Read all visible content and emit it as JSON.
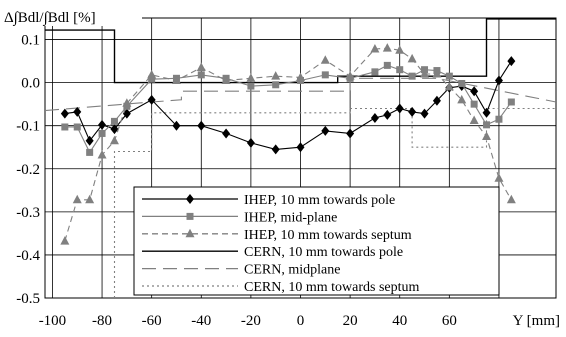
{
  "chart_data": {
    "type": "line",
    "title": "",
    "ylabel": "Δ∫Bdl/∫Bdl [%]",
    "xlabel": "Y [mm]",
    "xlim": [
      -100,
      100
    ],
    "ylim": [
      -0.5,
      0.15
    ],
    "xticks": [
      -100,
      -80,
      -60,
      -40,
      -20,
      0,
      20,
      40,
      60
    ],
    "xtick_labels": [
      "-100",
      "-80",
      "-60",
      "-40",
      "-20",
      "0",
      "20",
      "40",
      "60"
    ],
    "yticks": [
      0.1,
      0.0,
      -0.1,
      -0.2,
      -0.3,
      -0.4,
      -0.5
    ],
    "ytick_labels": [
      "0.1",
      "0.0",
      "-0.1",
      "-0.2",
      "-0.3",
      "-0.4",
      "-0.5"
    ],
    "grid": true,
    "legend_position": "bottom-center",
    "series": [
      {
        "name": "IHEP, 10 mm towards pole",
        "color": "#000000",
        "dash": "",
        "marker": "diamond",
        "points": [
          [
            -95,
            -0.072
          ],
          [
            -90,
            -0.068
          ],
          [
            -85,
            -0.135
          ],
          [
            -80,
            -0.098
          ],
          [
            -75,
            -0.108
          ],
          [
            -70,
            -0.072
          ],
          [
            -60,
            -0.04
          ],
          [
            -50,
            -0.1
          ],
          [
            -40,
            -0.1
          ],
          [
            -30,
            -0.118
          ],
          [
            -20,
            -0.14
          ],
          [
            -10,
            -0.155
          ],
          [
            0,
            -0.15
          ],
          [
            10,
            -0.112
          ],
          [
            20,
            -0.118
          ],
          [
            30,
            -0.082
          ],
          [
            35,
            -0.075
          ],
          [
            40,
            -0.06
          ],
          [
            45,
            -0.068
          ],
          [
            50,
            -0.072
          ],
          [
            55,
            -0.042
          ],
          [
            60,
            -0.012
          ],
          [
            65,
            -0.008
          ],
          [
            70,
            -0.02
          ],
          [
            75,
            -0.07
          ],
          [
            80,
            0.005
          ],
          [
            85,
            0.05
          ]
        ]
      },
      {
        "name": "IHEP, mid-plane",
        "color": "#808080",
        "dash": "",
        "marker": "square",
        "points": [
          [
            -95,
            -0.103
          ],
          [
            -90,
            -0.103
          ],
          [
            -85,
            -0.162
          ],
          [
            -80,
            -0.118
          ],
          [
            -75,
            -0.09
          ],
          [
            -70,
            -0.055
          ],
          [
            -60,
            0.008
          ],
          [
            -50,
            0.01
          ],
          [
            -40,
            0.018
          ],
          [
            -30,
            0.01
          ],
          [
            -20,
            -0.008
          ],
          [
            -10,
            -0.005
          ],
          [
            0,
            0.005
          ],
          [
            10,
            0.018
          ],
          [
            20,
            0.01
          ],
          [
            30,
            0.025
          ],
          [
            35,
            0.04
          ],
          [
            40,
            0.03
          ],
          [
            45,
            0.015
          ],
          [
            50,
            0.03
          ],
          [
            55,
            0.028
          ],
          [
            60,
            0.015
          ],
          [
            65,
            -0.002
          ],
          [
            70,
            -0.05
          ],
          [
            75,
            -0.098
          ],
          [
            80,
            -0.085
          ],
          [
            85,
            -0.045
          ]
        ]
      },
      {
        "name": "IHEP, 10 mm towards septum",
        "color": "#808080",
        "dash": "6,4",
        "marker": "triangle",
        "points": [
          [
            -95,
            -0.368
          ],
          [
            -90,
            -0.272
          ],
          [
            -85,
            -0.272
          ],
          [
            -80,
            -0.168
          ],
          [
            -75,
            -0.135
          ],
          [
            -70,
            -0.048
          ],
          [
            -60,
            0.018
          ],
          [
            -50,
            0.005
          ],
          [
            -40,
            0.035
          ],
          [
            -30,
            0.005
          ],
          [
            -20,
            0.01
          ],
          [
            -10,
            0.015
          ],
          [
            0,
            0.012
          ],
          [
            10,
            0.052
          ],
          [
            20,
            0.015
          ],
          [
            30,
            0.078
          ],
          [
            35,
            0.08
          ],
          [
            40,
            0.075
          ],
          [
            45,
            0.055
          ],
          [
            50,
            0.02
          ],
          [
            55,
            0.02
          ],
          [
            60,
            -0.01
          ],
          [
            65,
            -0.04
          ],
          [
            70,
            -0.088
          ],
          [
            75,
            -0.125
          ],
          [
            80,
            -0.222
          ],
          [
            85,
            -0.272
          ]
        ]
      },
      {
        "name": "CERN, 10 mm towards pole",
        "color": "#000000",
        "dash": "",
        "marker": "none",
        "points": [
          [
            -103,
            0.122
          ],
          [
            -75,
            0.122
          ],
          [
            -75,
            0.0
          ],
          [
            15,
            0.0
          ],
          [
            15,
            0.015
          ],
          [
            75,
            0.015
          ],
          [
            75,
            0.148
          ],
          [
            103,
            0.148
          ]
        ]
      },
      {
        "name": "CERN, midplane",
        "color": "#808080",
        "dash": "14,7",
        "marker": "none",
        "points": [
          [
            -103,
            -0.065
          ],
          [
            -60,
            -0.045
          ],
          [
            -48,
            -0.04
          ],
          [
            -48,
            -0.02
          ],
          [
            20,
            -0.02
          ],
          [
            20,
            0.01
          ],
          [
            55,
            0.01
          ],
          [
            103,
            -0.045
          ]
        ]
      },
      {
        "name": "CERN, 10 mm towards septum",
        "color": "#808080",
        "dash": "2,3",
        "marker": "none",
        "points": [
          [
            -75,
            -0.5
          ],
          [
            -75,
            -0.16
          ],
          [
            -60,
            -0.16
          ],
          [
            -60,
            -0.07
          ],
          [
            -40,
            -0.07
          ],
          [
            -40,
            -0.07
          ],
          [
            20,
            -0.07
          ],
          [
            20,
            -0.06
          ],
          [
            45,
            -0.06
          ],
          [
            45,
            -0.15
          ],
          [
            75,
            -0.15
          ],
          [
            75,
            -0.06
          ],
          [
            103,
            -0.06
          ]
        ]
      }
    ]
  }
}
